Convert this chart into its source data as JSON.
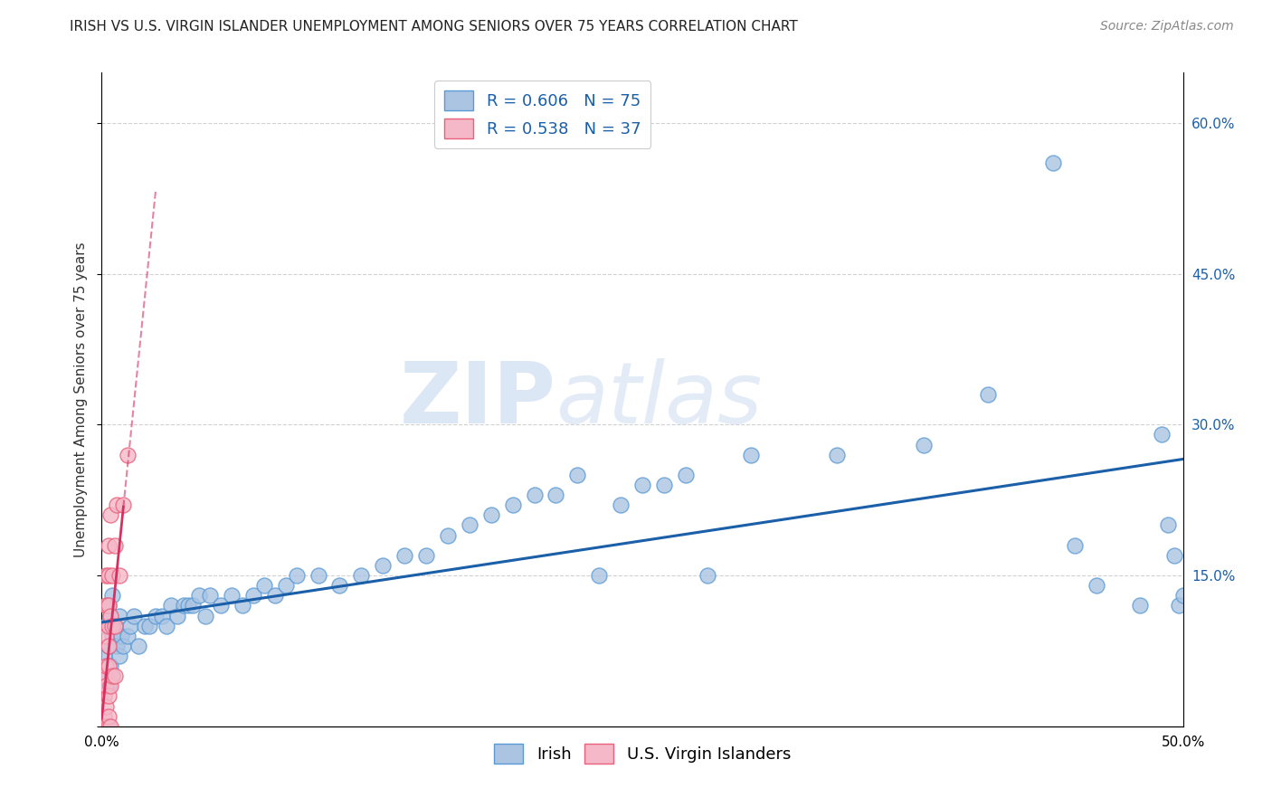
{
  "title": "IRISH VS U.S. VIRGIN ISLANDER UNEMPLOYMENT AMONG SENIORS OVER 75 YEARS CORRELATION CHART",
  "source": "Source: ZipAtlas.com",
  "ylabel": "Unemployment Among Seniors over 75 years",
  "xlim": [
    0.0,
    0.5
  ],
  "ylim": [
    0.0,
    0.65
  ],
  "xticks": [
    0.0,
    0.1,
    0.2,
    0.3,
    0.4,
    0.5
  ],
  "xticklabels": [
    "0.0%",
    "",
    "",
    "",
    "",
    "50.0%"
  ],
  "yticks": [
    0.0,
    0.15,
    0.3,
    0.45,
    0.6
  ],
  "yticklabels_right": [
    "",
    "15.0%",
    "30.0%",
    "45.0%",
    "60.0%"
  ],
  "irish_color": "#aac4e2",
  "irish_edge_color": "#5b9bd5",
  "usvl_color": "#f4b8c8",
  "usvl_edge_color": "#e8607a",
  "irish_line_color": "#1a5fa8",
  "usvl_line_color": "#d63060",
  "irish_R": 0.606,
  "irish_N": 75,
  "usvl_R": 0.538,
  "usvl_N": 37,
  "legend_x_label": "Irish",
  "legend_y_label": "U.S. Virgin Islanders",
  "irish_x": [
    0.001,
    0.001,
    0.002,
    0.002,
    0.003,
    0.003,
    0.003,
    0.004,
    0.004,
    0.005,
    0.005,
    0.005,
    0.006,
    0.007,
    0.008,
    0.008,
    0.009,
    0.01,
    0.012,
    0.013,
    0.015,
    0.017,
    0.02,
    0.022,
    0.025,
    0.028,
    0.03,
    0.032,
    0.035,
    0.038,
    0.04,
    0.042,
    0.045,
    0.048,
    0.05,
    0.055,
    0.06,
    0.065,
    0.07,
    0.075,
    0.08,
    0.085,
    0.09,
    0.1,
    0.11,
    0.12,
    0.13,
    0.14,
    0.15,
    0.16,
    0.17,
    0.18,
    0.19,
    0.2,
    0.21,
    0.22,
    0.23,
    0.24,
    0.25,
    0.26,
    0.27,
    0.28,
    0.3,
    0.34,
    0.38,
    0.41,
    0.44,
    0.45,
    0.46,
    0.48,
    0.49,
    0.493,
    0.496,
    0.498,
    0.5
  ],
  "irish_y": [
    0.04,
    0.07,
    0.05,
    0.1,
    0.04,
    0.08,
    0.12,
    0.06,
    0.11,
    0.05,
    0.09,
    0.13,
    0.1,
    0.08,
    0.07,
    0.11,
    0.09,
    0.08,
    0.09,
    0.1,
    0.11,
    0.08,
    0.1,
    0.1,
    0.11,
    0.11,
    0.1,
    0.12,
    0.11,
    0.12,
    0.12,
    0.12,
    0.13,
    0.11,
    0.13,
    0.12,
    0.13,
    0.12,
    0.13,
    0.14,
    0.13,
    0.14,
    0.15,
    0.15,
    0.14,
    0.15,
    0.16,
    0.17,
    0.17,
    0.19,
    0.2,
    0.21,
    0.22,
    0.23,
    0.23,
    0.25,
    0.15,
    0.22,
    0.24,
    0.24,
    0.25,
    0.15,
    0.27,
    0.27,
    0.28,
    0.33,
    0.56,
    0.18,
    0.14,
    0.12,
    0.29,
    0.2,
    0.17,
    0.12,
    0.13
  ],
  "usvl_x": [
    0.001,
    0.001,
    0.001,
    0.001,
    0.001,
    0.002,
    0.002,
    0.002,
    0.002,
    0.002,
    0.002,
    0.002,
    0.002,
    0.002,
    0.003,
    0.003,
    0.003,
    0.003,
    0.003,
    0.003,
    0.003,
    0.003,
    0.003,
    0.004,
    0.004,
    0.004,
    0.004,
    0.005,
    0.005,
    0.005,
    0.006,
    0.006,
    0.006,
    0.007,
    0.008,
    0.01,
    0.012
  ],
  "usvl_y": [
    0.0,
    0.0,
    0.01,
    0.03,
    0.05,
    0.0,
    0.0,
    0.0,
    0.02,
    0.04,
    0.06,
    0.09,
    0.12,
    0.15,
    0.0,
    0.01,
    0.03,
    0.06,
    0.08,
    0.1,
    0.12,
    0.15,
    0.18,
    0.0,
    0.04,
    0.11,
    0.21,
    0.05,
    0.1,
    0.15,
    0.05,
    0.1,
    0.18,
    0.22,
    0.15,
    0.22,
    0.27
  ],
  "watermark_zip": "ZIP",
  "watermark_atlas": "atlas",
  "background_color": "#ffffff",
  "grid_color": "#cccccc",
  "title_fontsize": 11,
  "axis_label_fontsize": 11,
  "tick_fontsize": 11,
  "legend_fontsize": 13,
  "source_fontsize": 10
}
